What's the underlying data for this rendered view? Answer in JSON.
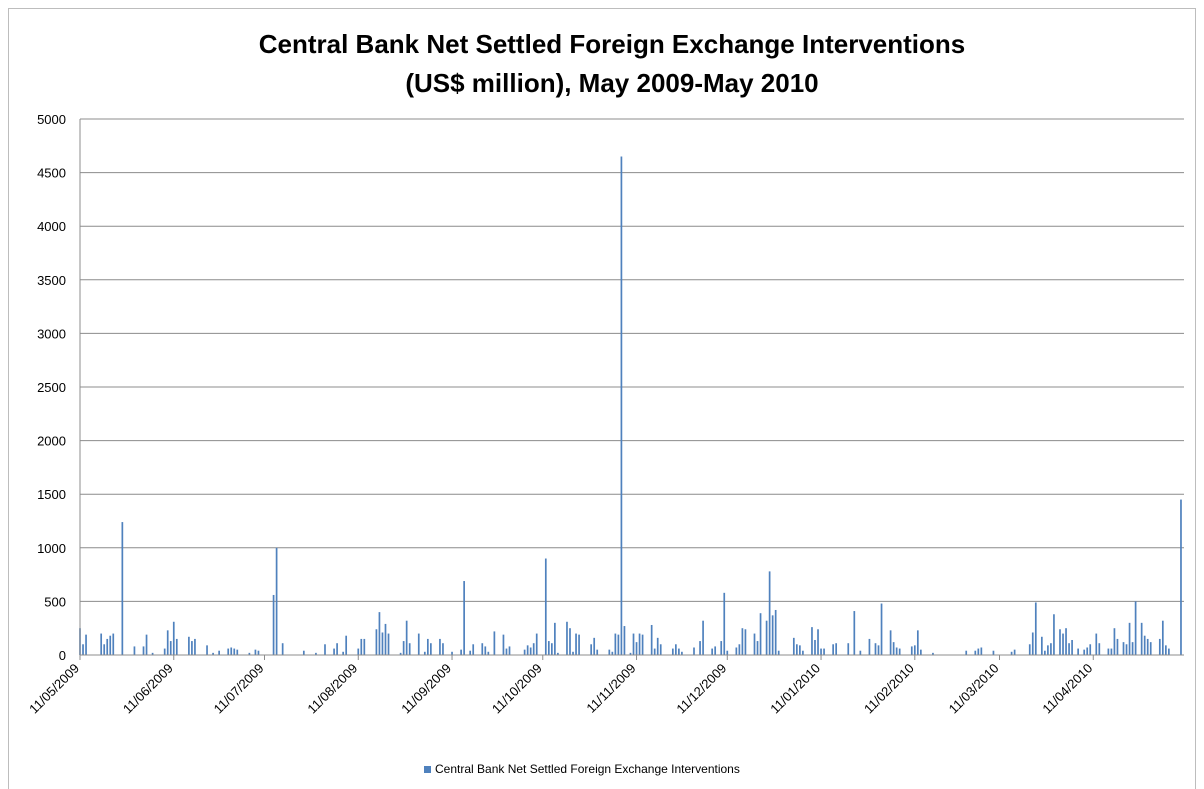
{
  "chart_data": {
    "type": "bar",
    "title_lines": [
      "Central Bank Net Settled Foreign Exchange Interventions",
      "(US$ million), May 2009-May 2010"
    ],
    "xlabel": "",
    "ylabel": "",
    "ylim": [
      0,
      5000
    ],
    "y_ticks": [
      0,
      500,
      1000,
      1500,
      2000,
      2500,
      3000,
      3500,
      4000,
      4500,
      5000
    ],
    "x_range": [
      "2009-05-11",
      "2010-05-11"
    ],
    "x_tick_labels": [
      {
        "label": "11/05/2009",
        "date": "2009-05-11"
      },
      {
        "label": "11/06/2009",
        "date": "2009-06-11"
      },
      {
        "label": "11/07/2009",
        "date": "2009-07-11"
      },
      {
        "label": "11/08/2009",
        "date": "2009-08-11"
      },
      {
        "label": "11/09/2009",
        "date": "2009-09-11"
      },
      {
        "label": "11/10/2009",
        "date": "2009-10-11"
      },
      {
        "label": "11/11/2009",
        "date": "2009-11-11"
      },
      {
        "label": "11/12/2009",
        "date": "2009-12-11"
      },
      {
        "label": "11/01/2010",
        "date": "2010-01-11"
      },
      {
        "label": "11/02/2010",
        "date": "2010-02-11"
      },
      {
        "label": "11/03/2010",
        "date": "2010-03-11"
      },
      {
        "label": "11/04/2010",
        "date": "2010-04-11"
      }
    ],
    "grid": true,
    "legend_position": "bottom",
    "series": [
      {
        "name": "Central Bank Net Settled Foreign Exchange Interventions",
        "color": "#4f81bd",
        "points": [
          [
            "2009-05-11",
            250
          ],
          [
            "2009-05-12",
            100
          ],
          [
            "2009-05-13",
            190
          ],
          [
            "2009-05-18",
            200
          ],
          [
            "2009-05-19",
            100
          ],
          [
            "2009-05-20",
            150
          ],
          [
            "2009-05-21",
            180
          ],
          [
            "2009-05-22",
            200
          ],
          [
            "2009-05-25",
            1240
          ],
          [
            "2009-05-26",
            0
          ],
          [
            "2009-05-29",
            80
          ],
          [
            "2009-06-01",
            80
          ],
          [
            "2009-06-02",
            190
          ],
          [
            "2009-06-04",
            20
          ],
          [
            "2009-06-08",
            60
          ],
          [
            "2009-06-09",
            230
          ],
          [
            "2009-06-10",
            130
          ],
          [
            "2009-06-11",
            310
          ],
          [
            "2009-06-12",
            150
          ],
          [
            "2009-06-16",
            170
          ],
          [
            "2009-06-17",
            130
          ],
          [
            "2009-06-18",
            150
          ],
          [
            "2009-06-22",
            90
          ],
          [
            "2009-06-24",
            20
          ],
          [
            "2009-06-26",
            40
          ],
          [
            "2009-06-29",
            60
          ],
          [
            "2009-06-30",
            70
          ],
          [
            "2009-07-01",
            60
          ],
          [
            "2009-07-02",
            50
          ],
          [
            "2009-07-06",
            20
          ],
          [
            "2009-07-08",
            50
          ],
          [
            "2009-07-09",
            40
          ],
          [
            "2009-07-14",
            560
          ],
          [
            "2009-07-15",
            1000
          ],
          [
            "2009-07-17",
            110
          ],
          [
            "2009-07-24",
            40
          ],
          [
            "2009-07-28",
            20
          ],
          [
            "2009-07-31",
            100
          ],
          [
            "2009-08-03",
            60
          ],
          [
            "2009-08-04",
            110
          ],
          [
            "2009-08-06",
            30
          ],
          [
            "2009-08-07",
            180
          ],
          [
            "2009-08-11",
            60
          ],
          [
            "2009-08-12",
            150
          ],
          [
            "2009-08-13",
            150
          ],
          [
            "2009-08-17",
            240
          ],
          [
            "2009-08-18",
            400
          ],
          [
            "2009-08-19",
            210
          ],
          [
            "2009-08-20",
            290
          ],
          [
            "2009-08-21",
            200
          ],
          [
            "2009-08-25",
            20
          ],
          [
            "2009-08-26",
            130
          ],
          [
            "2009-08-27",
            320
          ],
          [
            "2009-08-28",
            110
          ],
          [
            "2009-08-31",
            200
          ],
          [
            "2009-09-02",
            30
          ],
          [
            "2009-09-03",
            150
          ],
          [
            "2009-09-04",
            110
          ],
          [
            "2009-09-07",
            150
          ],
          [
            "2009-09-08",
            110
          ],
          [
            "2009-09-11",
            30
          ],
          [
            "2009-09-14",
            50
          ],
          [
            "2009-09-15",
            690
          ],
          [
            "2009-09-17",
            40
          ],
          [
            "2009-09-18",
            100
          ],
          [
            "2009-09-21",
            110
          ],
          [
            "2009-09-22",
            80
          ],
          [
            "2009-09-23",
            30
          ],
          [
            "2009-09-25",
            220
          ],
          [
            "2009-09-28",
            190
          ],
          [
            "2009-09-29",
            60
          ],
          [
            "2009-09-30",
            80
          ],
          [
            "2009-10-05",
            50
          ],
          [
            "2009-10-06",
            90
          ],
          [
            "2009-10-07",
            70
          ],
          [
            "2009-10-08",
            110
          ],
          [
            "2009-10-09",
            200
          ],
          [
            "2009-10-12",
            900
          ],
          [
            "2009-10-13",
            130
          ],
          [
            "2009-10-14",
            110
          ],
          [
            "2009-10-15",
            300
          ],
          [
            "2009-10-16",
            20
          ],
          [
            "2009-10-19",
            310
          ],
          [
            "2009-10-20",
            250
          ],
          [
            "2009-10-21",
            30
          ],
          [
            "2009-10-22",
            200
          ],
          [
            "2009-10-23",
            190
          ],
          [
            "2009-10-27",
            100
          ],
          [
            "2009-10-28",
            160
          ],
          [
            "2009-10-29",
            50
          ],
          [
            "2009-11-02",
            50
          ],
          [
            "2009-11-03",
            30
          ],
          [
            "2009-11-04",
            200
          ],
          [
            "2009-11-05",
            190
          ],
          [
            "2009-11-06",
            4650
          ],
          [
            "2009-11-07",
            270
          ],
          [
            "2009-11-09",
            20
          ],
          [
            "2009-11-10",
            200
          ],
          [
            "2009-11-11",
            120
          ],
          [
            "2009-11-12",
            200
          ],
          [
            "2009-11-13",
            190
          ],
          [
            "2009-11-16",
            280
          ],
          [
            "2009-11-17",
            60
          ],
          [
            "2009-11-18",
            160
          ],
          [
            "2009-11-19",
            100
          ],
          [
            "2009-11-23",
            60
          ],
          [
            "2009-11-24",
            100
          ],
          [
            "2009-11-25",
            60
          ],
          [
            "2009-11-26",
            30
          ],
          [
            "2009-11-30",
            70
          ],
          [
            "2009-12-02",
            130
          ],
          [
            "2009-12-03",
            320
          ],
          [
            "2009-12-06",
            60
          ],
          [
            "2009-12-07",
            80
          ],
          [
            "2009-12-09",
            130
          ],
          [
            "2009-12-10",
            580
          ],
          [
            "2009-12-11",
            40
          ],
          [
            "2009-12-14",
            70
          ],
          [
            "2009-12-15",
            100
          ],
          [
            "2009-12-16",
            250
          ],
          [
            "2009-12-17",
            240
          ],
          [
            "2009-12-20",
            200
          ],
          [
            "2009-12-21",
            130
          ],
          [
            "2009-12-22",
            390
          ],
          [
            "2009-12-24",
            320
          ],
          [
            "2009-12-25",
            780
          ],
          [
            "2009-12-26",
            370
          ],
          [
            "2009-12-27",
            420
          ],
          [
            "2009-12-28",
            40
          ],
          [
            "2010-01-02",
            160
          ],
          [
            "2010-01-03",
            100
          ],
          [
            "2010-01-04",
            90
          ],
          [
            "2010-01-05",
            40
          ],
          [
            "2010-01-08",
            260
          ],
          [
            "2010-01-09",
            140
          ],
          [
            "2010-01-10",
            240
          ],
          [
            "2010-01-11",
            60
          ],
          [
            "2010-01-12",
            60
          ],
          [
            "2010-01-15",
            100
          ],
          [
            "2010-01-16",
            110
          ],
          [
            "2010-01-20",
            110
          ],
          [
            "2010-01-22",
            410
          ],
          [
            "2010-01-24",
            40
          ],
          [
            "2010-01-27",
            150
          ],
          [
            "2010-01-29",
            110
          ],
          [
            "2010-01-30",
            90
          ],
          [
            "2010-01-31",
            480
          ],
          [
            "2010-02-03",
            230
          ],
          [
            "2010-02-04",
            120
          ],
          [
            "2010-02-05",
            70
          ],
          [
            "2010-02-06",
            60
          ],
          [
            "2010-02-10",
            80
          ],
          [
            "2010-02-11",
            90
          ],
          [
            "2010-02-12",
            230
          ],
          [
            "2010-02-13",
            50
          ],
          [
            "2010-02-17",
            20
          ],
          [
            "2010-02-28",
            40
          ],
          [
            "2010-03-03",
            40
          ],
          [
            "2010-03-04",
            60
          ],
          [
            "2010-03-05",
            70
          ],
          [
            "2010-03-09",
            40
          ],
          [
            "2010-03-15",
            30
          ],
          [
            "2010-03-16",
            50
          ],
          [
            "2010-03-21",
            100
          ],
          [
            "2010-03-22",
            210
          ],
          [
            "2010-03-23",
            490
          ],
          [
            "2010-03-25",
            170
          ],
          [
            "2010-03-26",
            40
          ],
          [
            "2010-03-27",
            90
          ],
          [
            "2010-03-28",
            110
          ],
          [
            "2010-03-29",
            380
          ],
          [
            "2010-03-31",
            240
          ],
          [
            "2010-04-01",
            200
          ],
          [
            "2010-04-02",
            250
          ],
          [
            "2010-04-03",
            110
          ],
          [
            "2010-04-04",
            140
          ],
          [
            "2010-04-06",
            60
          ],
          [
            "2010-04-08",
            50
          ],
          [
            "2010-04-09",
            70
          ],
          [
            "2010-04-10",
            100
          ],
          [
            "2010-04-12",
            200
          ],
          [
            "2010-04-13",
            110
          ],
          [
            "2010-04-16",
            60
          ],
          [
            "2010-04-17",
            60
          ],
          [
            "2010-04-18",
            250
          ],
          [
            "2010-04-19",
            150
          ],
          [
            "2010-04-21",
            120
          ],
          [
            "2010-04-22",
            100
          ],
          [
            "2010-04-23",
            300
          ],
          [
            "2010-04-24",
            120
          ],
          [
            "2010-04-25",
            500
          ],
          [
            "2010-04-27",
            300
          ],
          [
            "2010-04-28",
            180
          ],
          [
            "2010-04-29",
            150
          ],
          [
            "2010-04-30",
            120
          ],
          [
            "2010-05-03",
            150
          ],
          [
            "2010-05-04",
            320
          ],
          [
            "2010-05-05",
            90
          ],
          [
            "2010-05-06",
            60
          ],
          [
            "2010-05-10",
            1450
          ]
        ]
      }
    ]
  }
}
